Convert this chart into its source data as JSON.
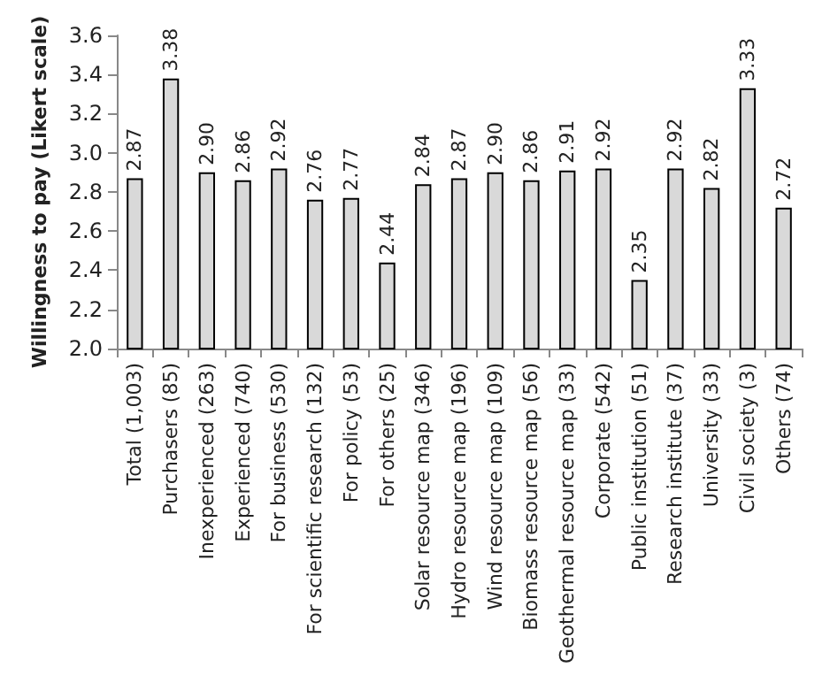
{
  "chart_data": {
    "type": "bar",
    "ylabel": "Willingness to pay (Likert scale)",
    "categories": [
      "Total (1,003)",
      "Purchasers (85)",
      "Inexperienced (263)",
      "Experienced (740)",
      "For business (530)",
      "For scientific research (132)",
      "For policy (53)",
      "For others (25)",
      "Solar resource map (346)",
      "Hydro resource map (196)",
      "Wind resource map (109)",
      "Biomass resource map (56)",
      "Geothermal resource map (33)",
      "Corporate (542)",
      "Public institution (51)",
      "Research institute (37)",
      "University (33)",
      "Civil society (3)",
      "Others (74)"
    ],
    "values": [
      2.87,
      3.38,
      2.9,
      2.86,
      2.92,
      2.76,
      2.77,
      2.44,
      2.84,
      2.87,
      2.9,
      2.86,
      2.91,
      2.92,
      2.35,
      2.92,
      2.82,
      3.33,
      2.72
    ],
    "value_labels": [
      "2.87",
      "3.38",
      "2.90",
      "2.86",
      "2.92",
      "2.76",
      "2.77",
      "2.44",
      "2.84",
      "2.87",
      "2.90",
      "2.86",
      "2.91",
      "2.92",
      "2.35",
      "2.92",
      "2.82",
      "3.33",
      "2.72"
    ],
    "color": "#d9d9d9",
    "ylim": [
      2.0,
      3.6
    ],
    "yticks": [
      {
        "value": 2.0,
        "label": "2.0"
      },
      {
        "value": 2.2,
        "label": "2.2"
      },
      {
        "value": 2.4,
        "label": "2.4"
      },
      {
        "value": 2.6,
        "label": "2.6"
      },
      {
        "value": 2.8,
        "label": "2.8"
      },
      {
        "value": 3.0,
        "label": "3.0"
      },
      {
        "value": 3.2,
        "label": "3.2"
      },
      {
        "value": 3.4,
        "label": "3.4"
      },
      {
        "value": 3.6,
        "label": "3.6"
      }
    ],
    "grid": false
  }
}
